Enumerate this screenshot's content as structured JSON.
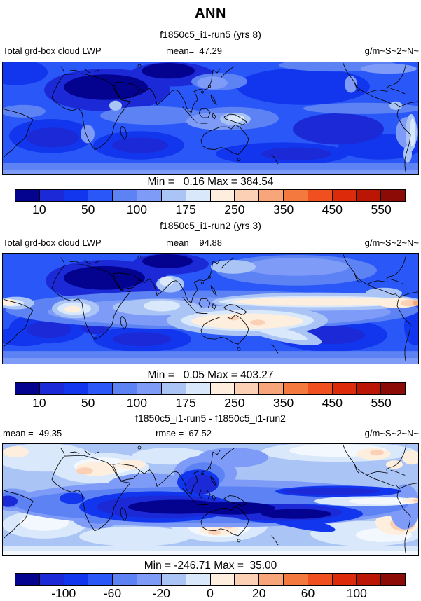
{
  "page_title": "ANN",
  "panels": [
    {
      "title": "f1850c5_i1-run5 (yrs 8)",
      "variable": "Total grd-box cloud LWP",
      "mean_label": "mean=  47.29",
      "units": "g/m~S~2~N~",
      "minmax_label": "Min =   0.16 Max = 384.54",
      "colorbar_ticks": [
        "10",
        "50",
        "100",
        "175",
        "250",
        "350",
        "450",
        "550"
      ]
    },
    {
      "title": "f1850c5_i1-run2 (yrs 3)",
      "variable": "Total grd-box cloud LWP",
      "mean_label": "mean=  94.88",
      "units": "g/m~S~2~N~",
      "minmax_label": "Min =   0.05 Max = 403.27",
      "colorbar_ticks": [
        "10",
        "50",
        "100",
        "175",
        "250",
        "350",
        "450",
        "550"
      ]
    },
    {
      "title": "f1850c5_i1-run5 - f1850c5_i1-run2",
      "mean_label": "mean = -49.35",
      "rmse_label": "rmse =  67.52",
      "units": "g/m~S~2~N~",
      "minmax_label": "Min = -246.71 Max =  35.00",
      "colorbar_ticks": [
        "-100",
        "-60",
        "-20",
        "0",
        "20",
        "60",
        "100"
      ]
    }
  ],
  "colorbar_colors": [
    "#04038f",
    "#1b2ad6",
    "#1136ee",
    "#2a57f8",
    "#5c82f4",
    "#7d9bf7",
    "#aac4f6",
    "#d9e8fa",
    "#fdeedd",
    "#fbd0b4",
    "#f7a579",
    "#f4793f",
    "#f04f1f",
    "#dc2a0a",
    "#bb1503",
    "#8d0b06"
  ],
  "map_colors": {
    "ocean_base": "#2a57f8",
    "near_white": "#f3f8fe",
    "coastline": "#000000"
  },
  "chart_data": [
    {
      "type": "heatmap",
      "season": "ANN",
      "title": "f1850c5_i1-run5 (yrs 8)",
      "variable": "Total grd-box cloud LWP",
      "units": "g/m~S~2~N~",
      "mean": 47.29,
      "min": 0.16,
      "max": 384.54,
      "colorbar_tick_values": [
        10,
        50,
        100,
        175,
        250,
        350,
        450,
        550
      ],
      "colorbar_cells": 16,
      "palette": "blue-white-red"
    },
    {
      "type": "heatmap",
      "season": "ANN",
      "title": "f1850c5_i1-run2 (yrs 3)",
      "variable": "Total grd-box cloud LWP",
      "units": "g/m~S~2~N~",
      "mean": 94.88,
      "min": 0.05,
      "max": 403.27,
      "colorbar_tick_values": [
        10,
        50,
        100,
        175,
        250,
        350,
        450,
        550
      ],
      "colorbar_cells": 16,
      "palette": "blue-white-red"
    },
    {
      "type": "heatmap",
      "season": "ANN",
      "title": "f1850c5_i1-run5 - f1850c5_i1-run2",
      "units": "g/m~S~2~N~",
      "mean": -49.35,
      "rmse": 67.52,
      "min": -246.71,
      "max": 35.0,
      "colorbar_tick_values": [
        -100,
        -60,
        -20,
        0,
        20,
        60,
        100
      ],
      "colorbar_cells": 16,
      "palette": "blue-white-red"
    }
  ]
}
